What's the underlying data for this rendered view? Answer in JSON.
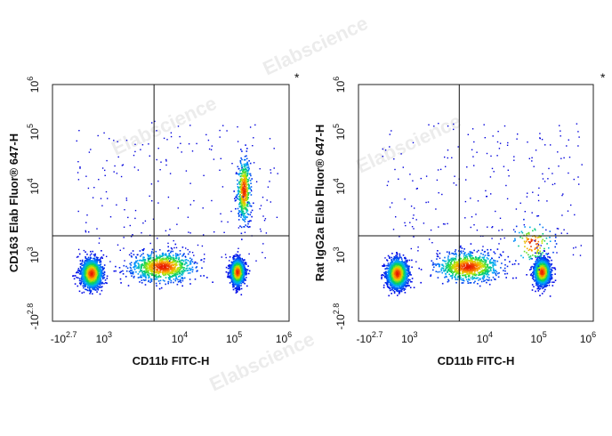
{
  "watermark_text": "Elabscience",
  "chart_data": [
    {
      "type": "scatter",
      "subtype": "flow-cytometry-density-plot",
      "xlabel": "CD11b FITC-H",
      "ylabel": "CD163 Elab Fluor® 647-H",
      "corner_mark": "*",
      "x_ticks": [
        {
          "base": "-10",
          "exp": "2.7"
        },
        {
          "base": "10",
          "exp": "3"
        },
        {
          "base": "10",
          "exp": "4"
        },
        {
          "base": "10",
          "exp": "5"
        },
        {
          "base": "10",
          "exp": "6"
        }
      ],
      "y_ticks": [
        {
          "base": "-10",
          "exp": "2.8"
        },
        {
          "base": "10",
          "exp": "3"
        },
        {
          "base": "10",
          "exp": "4"
        },
        {
          "base": "10",
          "exp": "5"
        },
        {
          "base": "10",
          "exp": "6"
        }
      ],
      "gate": {
        "x": 3900,
        "y": 1900
      },
      "populations": [
        {
          "x_center": 320,
          "y_center": 520,
          "x_spread": 0.18,
          "y_spread": 0.25,
          "count": 1800
        },
        {
          "x_center": 90000,
          "y_center": 560,
          "x_spread": 0.12,
          "y_spread": 0.22,
          "count": 1800
        },
        {
          "x_center": 5000,
          "y_center": 700,
          "x_spread": 0.55,
          "y_spread": 0.25,
          "count": 900
        },
        {
          "x_center": 120000,
          "y_center": 9000,
          "x_spread": 0.12,
          "y_spread": 0.55,
          "count": 500
        }
      ]
    },
    {
      "type": "scatter",
      "subtype": "flow-cytometry-density-plot",
      "xlabel": "CD11b FITC-H",
      "ylabel": "Rat IgG2a Elab Fluor® 647-H",
      "corner_mark": "*",
      "x_ticks": [
        {
          "base": "-10",
          "exp": "2.7"
        },
        {
          "base": "10",
          "exp": "3"
        },
        {
          "base": "10",
          "exp": "4"
        },
        {
          "base": "10",
          "exp": "5"
        },
        {
          "base": "10",
          "exp": "6"
        }
      ],
      "y_ticks": [
        {
          "base": "-10",
          "exp": "2.8"
        },
        {
          "base": "10",
          "exp": "3"
        },
        {
          "base": "10",
          "exp": "4"
        },
        {
          "base": "10",
          "exp": "5"
        },
        {
          "base": "10",
          "exp": "6"
        }
      ],
      "gate": {
        "x": 3900,
        "y": 1900
      },
      "populations": [
        {
          "x_center": 320,
          "y_center": 520,
          "x_spread": 0.18,
          "y_spread": 0.25,
          "count": 1800
        },
        {
          "x_center": 90000,
          "y_center": 560,
          "x_spread": 0.14,
          "y_spread": 0.22,
          "count": 1900
        },
        {
          "x_center": 5000,
          "y_center": 700,
          "x_spread": 0.55,
          "y_spread": 0.25,
          "count": 900
        },
        {
          "x_center": 60000,
          "y_center": 1500,
          "x_spread": 0.35,
          "y_spread": 0.35,
          "count": 120
        }
      ]
    }
  ]
}
